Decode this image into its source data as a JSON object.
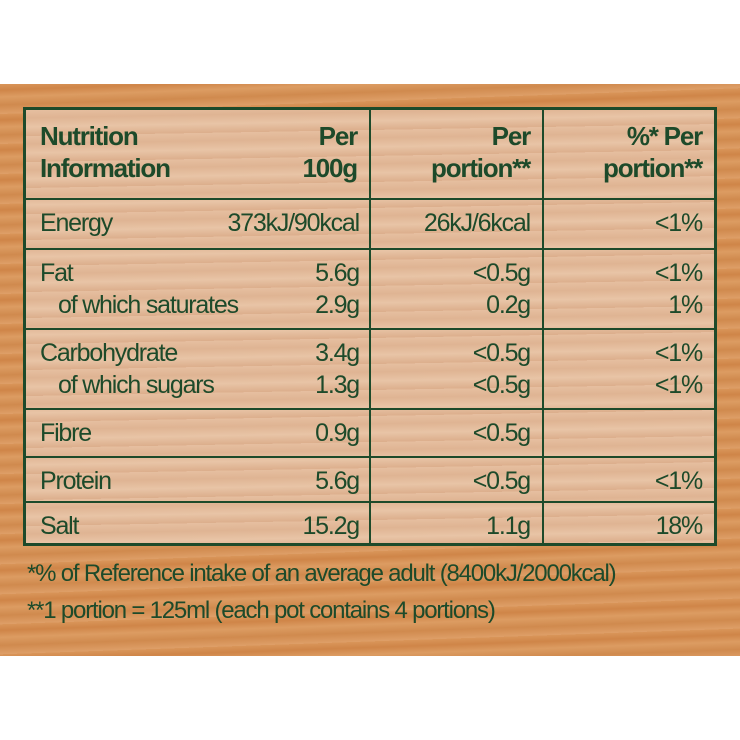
{
  "header": {
    "col0": [
      "Nutrition",
      "Information"
    ],
    "col1": [
      "Per",
      "100g"
    ],
    "col2": [
      "Per",
      "portion**"
    ],
    "col3": [
      "%* Per",
      "portion**"
    ]
  },
  "rows": [
    {
      "lines": [
        {
          "name": "Energy",
          "per100": "373kJ/90kcal",
          "portion": "26kJ/6kcal",
          "ri": "<1%"
        }
      ]
    },
    {
      "lines": [
        {
          "name": "Fat",
          "per100": "5.6g",
          "portion": "<0.5g",
          "ri": "<1%"
        },
        {
          "name": "of which saturates",
          "per100": "2.9g",
          "portion": "0.2g",
          "ri": "1%"
        }
      ]
    },
    {
      "lines": [
        {
          "name": "Carbohydrate",
          "per100": "3.4g",
          "portion": "<0.5g",
          "ri": "<1%"
        },
        {
          "name": "of which sugars",
          "per100": "1.3g",
          "portion": "<0.5g",
          "ri": "<1%"
        }
      ]
    },
    {
      "lines": [
        {
          "name": "Fibre",
          "per100": "0.9g",
          "portion": "<0.5g",
          "ri": ""
        }
      ]
    },
    {
      "lines": [
        {
          "name": "Protein",
          "per100": "5.6g",
          "portion": "<0.5g",
          "ri": "<1%"
        }
      ]
    },
    {
      "lines": [
        {
          "name": "Salt",
          "per100": "15.2g",
          "portion": "1.1g",
          "ri": "18%"
        }
      ]
    }
  ],
  "footnotes": [
    "*% of Reference intake of an average adult (8400kJ/2000kcal)",
    "**1 portion = 125ml (each pot contains 4 portions)"
  ],
  "colors": {
    "text": "#1d4a2a",
    "wood": "#d99559",
    "panel": "#e6bfa0"
  }
}
